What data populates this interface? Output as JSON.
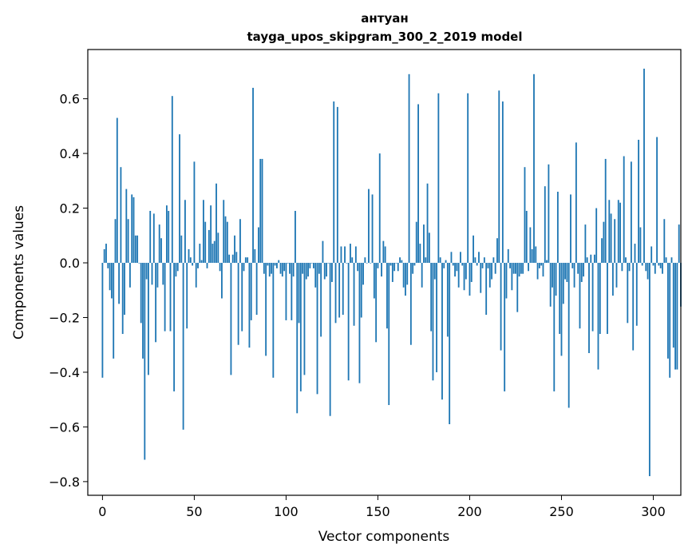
{
  "chart_data": {
    "type": "bar",
    "title": "антуан",
    "subtitle": "tayga_upos_skipgram_300_2_2019 model",
    "xlabel": "Vector components",
    "ylabel": "Components values",
    "xlim": [
      -8,
      315
    ],
    "ylim": [
      -0.85,
      0.78
    ],
    "xticks": [
      0,
      50,
      100,
      150,
      200,
      250,
      300
    ],
    "xtick_labels": [
      "0",
      "50",
      "100",
      "150",
      "200",
      "250",
      "300"
    ],
    "yticks": [
      -0.8,
      -0.6,
      -0.4,
      -0.2,
      0.0,
      0.2,
      0.4,
      0.6
    ],
    "ytick_labels": [
      "−0.8",
      "−0.6",
      "−0.4",
      "−0.2",
      "0.0",
      "0.2",
      "0.4",
      "0.6"
    ],
    "grid": false,
    "bar_color": "#1f77b4",
    "values": [
      -0.42,
      0.05,
      0.07,
      -0.02,
      -0.1,
      -0.13,
      -0.35,
      0.16,
      0.53,
      -0.15,
      0.35,
      -0.26,
      -0.19,
      0.27,
      0.16,
      -0.09,
      0.25,
      0.24,
      0.1,
      0.1,
      0.0,
      -0.22,
      -0.35,
      -0.72,
      -0.06,
      -0.41,
      0.19,
      -0.08,
      0.18,
      -0.29,
      -0.09,
      0.14,
      0.09,
      -0.08,
      -0.25,
      0.21,
      0.19,
      -0.25,
      0.61,
      -0.47,
      -0.05,
      -0.03,
      0.47,
      0.1,
      -0.61,
      0.23,
      -0.24,
      0.05,
      0.02,
      -0.01,
      0.37,
      -0.09,
      -0.02,
      0.07,
      0.01,
      0.23,
      0.15,
      -0.02,
      0.12,
      0.21,
      0.07,
      0.08,
      0.29,
      0.11,
      -0.03,
      -0.13,
      0.23,
      0.17,
      0.15,
      0.03,
      -0.41,
      0.03,
      0.1,
      0.04,
      -0.3,
      0.16,
      -0.25,
      -0.03,
      0.02,
      0.02,
      -0.31,
      -0.21,
      0.64,
      0.05,
      -0.19,
      0.13,
      0.38,
      0.38,
      -0.04,
      -0.34,
      -0.01,
      -0.05,
      -0.04,
      -0.42,
      -0.01,
      -0.02,
      0.01,
      -0.04,
      -0.05,
      -0.03,
      -0.21,
      0.0,
      -0.04,
      -0.21,
      -0.05,
      0.19,
      -0.55,
      -0.22,
      -0.47,
      -0.04,
      -0.41,
      -0.06,
      -0.05,
      -0.02,
      0.0,
      -0.02,
      -0.09,
      -0.48,
      -0.04,
      -0.27,
      0.08,
      -0.06,
      -0.05,
      0.0,
      -0.56,
      -0.07,
      0.59,
      -0.22,
      0.57,
      -0.2,
      0.06,
      -0.19,
      0.06,
      0.0,
      -0.43,
      0.07,
      0.02,
      -0.23,
      0.06,
      -0.03,
      -0.44,
      -0.2,
      -0.08,
      0.02,
      0.0,
      0.27,
      0.0,
      0.25,
      -0.13,
      -0.29,
      -0.02,
      0.4,
      -0.05,
      0.08,
      0.06,
      -0.24,
      -0.52,
      -0.01,
      -0.07,
      -0.03,
      0.0,
      -0.03,
      0.02,
      0.01,
      -0.09,
      -0.12,
      -0.08,
      0.69,
      -0.3,
      -0.04,
      -0.01,
      0.15,
      0.58,
      0.07,
      -0.09,
      0.14,
      0.02,
      0.29,
      0.11,
      -0.25,
      -0.43,
      -0.06,
      -0.4,
      0.62,
      0.02,
      -0.5,
      -0.02,
      0.01,
      -0.27,
      -0.59,
      0.04,
      -0.01,
      -0.05,
      -0.03,
      -0.09,
      0.04,
      -0.01,
      -0.1,
      -0.06,
      0.62,
      -0.12,
      -0.07,
      0.1,
      0.02,
      -0.01,
      0.04,
      -0.11,
      -0.02,
      0.02,
      -0.19,
      -0.02,
      -0.09,
      -0.06,
      0.02,
      -0.04,
      0.09,
      0.63,
      -0.32,
      0.59,
      -0.47,
      -0.13,
      0.05,
      -0.02,
      -0.1,
      -0.04,
      -0.04,
      -0.18,
      -0.05,
      -0.04,
      -0.04,
      0.35,
      0.19,
      -0.03,
      0.13,
      0.05,
      0.69,
      0.06,
      -0.06,
      -0.02,
      -0.01,
      -0.05,
      0.28,
      0.01,
      0.36,
      -0.16,
      -0.09,
      -0.47,
      -0.12,
      0.26,
      -0.26,
      -0.34,
      -0.15,
      -0.06,
      -0.07,
      -0.53,
      0.25,
      -0.02,
      -0.09,
      0.44,
      -0.04,
      -0.24,
      -0.07,
      -0.05,
      0.14,
      0.02,
      -0.33,
      0.03,
      -0.25,
      0.03,
      0.2,
      -0.39,
      -0.26,
      0.09,
      0.15,
      0.38,
      -0.26,
      0.23,
      0.18,
      -0.12,
      0.16,
      -0.09,
      0.23,
      0.22,
      -0.03,
      0.39,
      0.02,
      -0.22,
      -0.03,
      0.37,
      -0.32,
      0.07,
      -0.23,
      0.45,
      0.13,
      -0.01,
      0.71,
      -0.03,
      -0.06,
      -0.78,
      0.06,
      -0.01,
      -0.04,
      0.46,
      -0.01,
      -0.02,
      -0.04,
      0.16,
      0.02,
      -0.35,
      -0.42,
      0.02,
      -0.31,
      -0.39,
      -0.39,
      0.14,
      -0.16
    ]
  }
}
